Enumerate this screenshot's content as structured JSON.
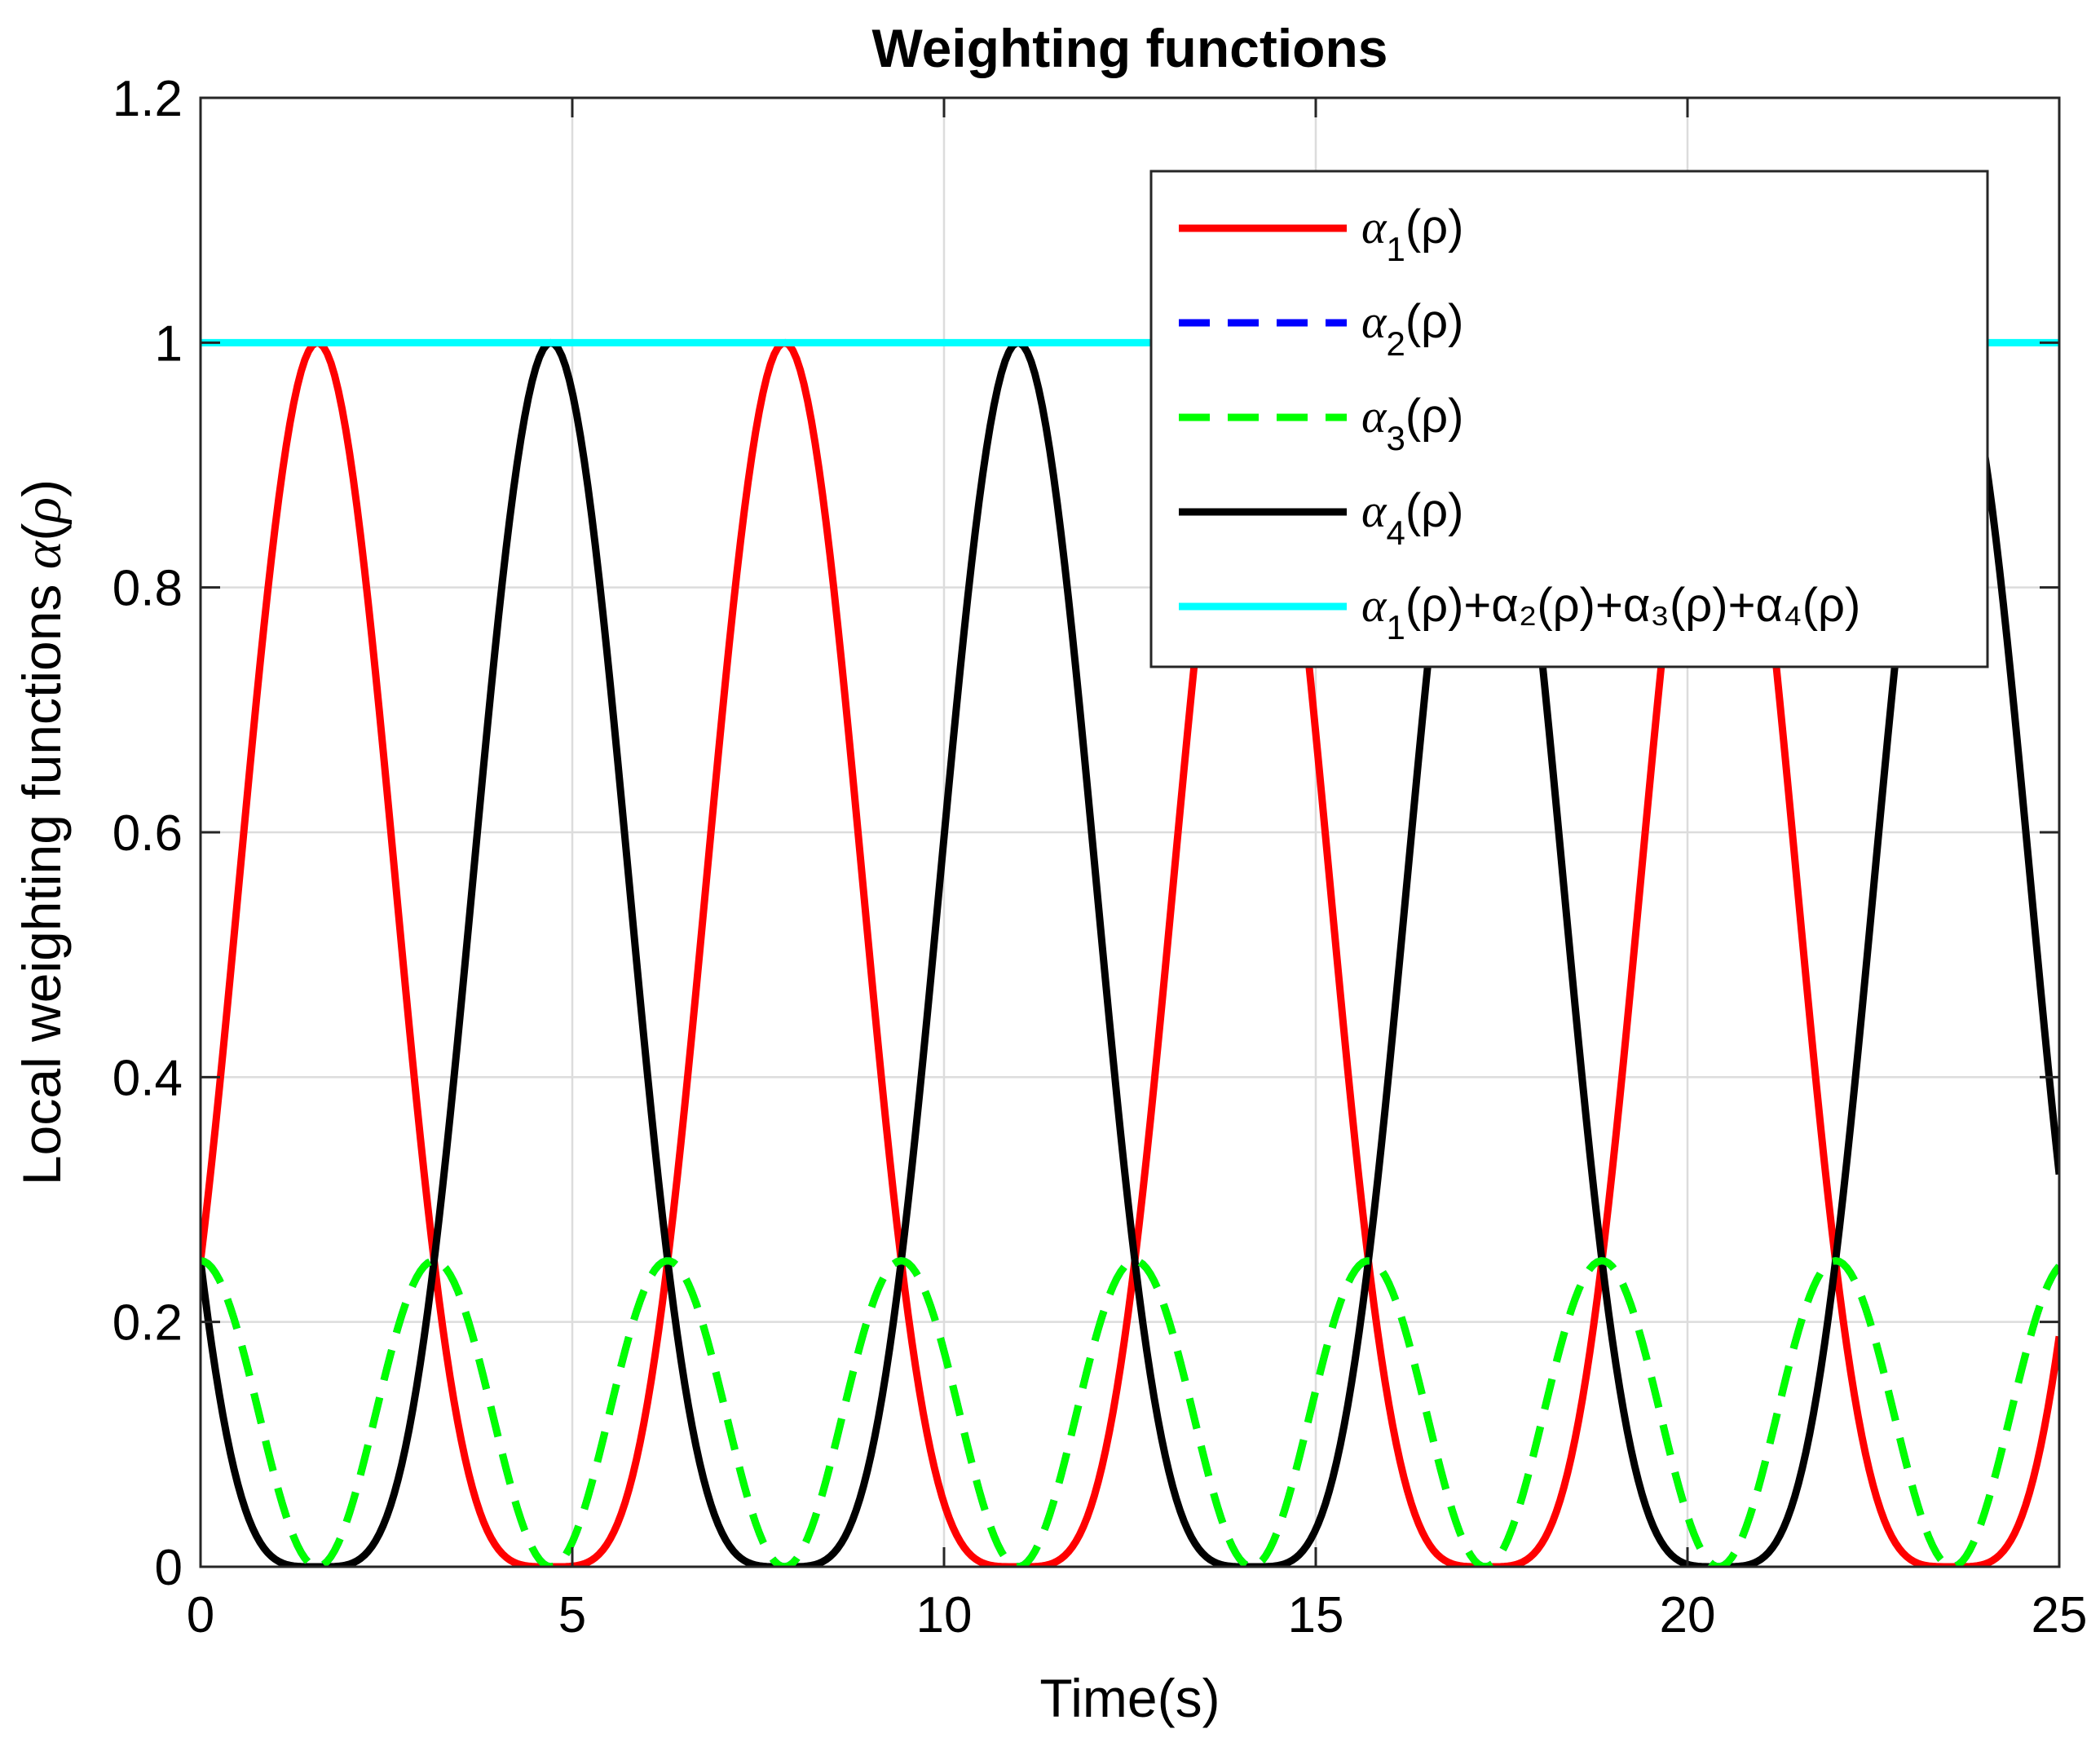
{
  "chart_data": {
    "type": "line",
    "title": "Weighting functions",
    "xlabel": "Time(s)",
    "ylabel": "Local weighting functions α(ρ)",
    "xlim": [
      0,
      25
    ],
    "ylim": [
      0,
      1.2
    ],
    "xticks": [
      0,
      5,
      10,
      15,
      20,
      25
    ],
    "yticks": [
      0,
      0.2,
      0.4,
      0.6,
      0.8,
      1,
      1.2
    ],
    "xtick_labels": [
      "0",
      "5",
      "10",
      "15",
      "20",
      "25"
    ],
    "ytick_labels": [
      "0",
      "0.2",
      "0.4",
      "0.6",
      "0.8",
      "1",
      "1.2"
    ],
    "grid": true,
    "legend_position": "top-right",
    "series": [
      {
        "name": "α1(ρ)",
        "color": "#ff0000",
        "style": "solid",
        "formula": "(1+sin t)^2/4",
        "x_range": [
          0,
          25
        ],
        "samples": 500
      },
      {
        "name": "α2(ρ)",
        "color": "#0000ff",
        "style": "dashed",
        "formula": "cos^2 t/4",
        "x_range": [
          0,
          25
        ],
        "samples": 500
      },
      {
        "name": "α3(ρ)",
        "color": "#00ff00",
        "style": "dashed",
        "formula": "cos^2 t/4",
        "x_range": [
          0,
          25
        ],
        "samples": 500
      },
      {
        "name": "α4(ρ)",
        "color": "#000000",
        "style": "solid",
        "formula": "(1-sin t)^2/4",
        "x_range": [
          0,
          25
        ],
        "samples": 500
      },
      {
        "name": "α1(ρ)+α2(ρ)+α3(ρ)+α4(ρ)",
        "color": "#00ffff",
        "style": "solid",
        "formula": "1",
        "x_range": [
          0,
          25
        ],
        "samples": 2
      }
    ]
  },
  "legend": {
    "entries": [
      {
        "sym": "α",
        "sub": "1",
        "rest": "(ρ)"
      },
      {
        "sym": "α",
        "sub": "2",
        "rest": "(ρ)"
      },
      {
        "sym": "α",
        "sub": "3",
        "rest": "(ρ)"
      },
      {
        "sym": "α",
        "sub": "4",
        "rest": "(ρ)"
      },
      {
        "sym": "α",
        "sub": "1",
        "rest": "(ρ)+α₂(ρ)+α₃(ρ)+α₄(ρ)"
      }
    ]
  }
}
